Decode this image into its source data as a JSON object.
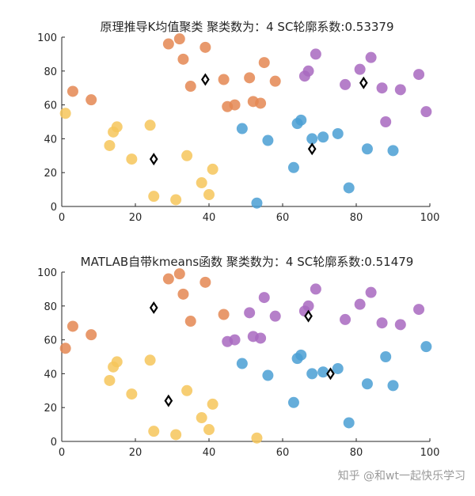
{
  "colors": {
    "cluster_blue": "#4a9fd3",
    "cluster_orange": "#e48752",
    "cluster_yellow": "#f6c65b",
    "cluster_purple": "#a869c0",
    "centroid_stroke": "#000000",
    "axis": "#262626"
  },
  "watermark": "知乎 @和wt一起快乐学习",
  "chart_data": [
    {
      "type": "scatter",
      "title": "原理推导K均值聚类 聚类数为：4 SC轮廓系数:0.53379",
      "xlim": [
        0,
        100
      ],
      "ylim": [
        0,
        100
      ],
      "xticks": [
        "0",
        "20",
        "40",
        "60",
        "80",
        "100"
      ],
      "yticks": [
        "0",
        "20",
        "40",
        "60",
        "80",
        "100"
      ],
      "grid": false,
      "clusters": [
        {
          "color": "#4a9fd3",
          "points": [
            [
              49,
              46
            ],
            [
              53,
              2
            ],
            [
              56,
              39
            ],
            [
              63,
              23
            ],
            [
              64,
              49
            ],
            [
              65,
              51
            ],
            [
              68,
              40
            ],
            [
              71,
              41
            ],
            [
              75,
              43
            ],
            [
              78,
              11
            ],
            [
              83,
              34
            ],
            [
              90,
              33
            ]
          ]
        },
        {
          "color": "#e48752",
          "points": [
            [
              3,
              68
            ],
            [
              8,
              63
            ],
            [
              29,
              96
            ],
            [
              32,
              99
            ],
            [
              33,
              87
            ],
            [
              35,
              71
            ],
            [
              39,
              94
            ],
            [
              44,
              75
            ],
            [
              45,
              59
            ],
            [
              47,
              60
            ],
            [
              51,
              76
            ],
            [
              52,
              62
            ],
            [
              54,
              61
            ],
            [
              55,
              85
            ],
            [
              58,
              74
            ]
          ]
        },
        {
          "color": "#f6c65b",
          "points": [
            [
              1,
              55
            ],
            [
              13,
              36
            ],
            [
              14,
              44
            ],
            [
              15,
              47
            ],
            [
              19,
              28
            ],
            [
              24,
              48
            ],
            [
              25,
              6
            ],
            [
              31,
              4
            ],
            [
              34,
              30
            ],
            [
              38,
              14
            ],
            [
              40,
              7
            ],
            [
              41,
              22
            ]
          ]
        },
        {
          "color": "#a869c0",
          "points": [
            [
              66,
              77
            ],
            [
              67,
              80
            ],
            [
              69,
              90
            ],
            [
              77,
              72
            ],
            [
              81,
              81
            ],
            [
              84,
              88
            ],
            [
              87,
              70
            ],
            [
              88,
              50
            ],
            [
              92,
              69
            ],
            [
              97,
              78
            ],
            [
              99,
              56
            ]
          ]
        }
      ],
      "centroids": [
        [
          25,
          28
        ],
        [
          39,
          75
        ],
        [
          68,
          34
        ],
        [
          82,
          73
        ]
      ]
    },
    {
      "type": "scatter",
      "title": "MATLAB自带kmeans函数 聚类数为：4 SC轮廓系数:0.51479",
      "xlim": [
        0,
        100
      ],
      "ylim": [
        0,
        100
      ],
      "xticks": [
        "0",
        "20",
        "40",
        "60",
        "80",
        "100"
      ],
      "yticks": [
        "0",
        "20",
        "40",
        "60",
        "80",
        "100"
      ],
      "grid": false,
      "clusters": [
        {
          "color": "#4a9fd3",
          "points": [
            [
              49,
              46
            ],
            [
              56,
              39
            ],
            [
              63,
              23
            ],
            [
              64,
              49
            ],
            [
              65,
              51
            ],
            [
              68,
              40
            ],
            [
              71,
              41
            ],
            [
              75,
              43
            ],
            [
              78,
              11
            ],
            [
              83,
              34
            ],
            [
              88,
              50
            ],
            [
              90,
              33
            ],
            [
              99,
              56
            ]
          ]
        },
        {
          "color": "#e48752",
          "points": [
            [
              1,
              55
            ],
            [
              3,
              68
            ],
            [
              8,
              63
            ],
            [
              29,
              96
            ],
            [
              32,
              99
            ],
            [
              33,
              87
            ],
            [
              35,
              71
            ],
            [
              39,
              94
            ],
            [
              44,
              75
            ]
          ]
        },
        {
          "color": "#f6c65b",
          "points": [
            [
              13,
              36
            ],
            [
              14,
              44
            ],
            [
              15,
              47
            ],
            [
              19,
              28
            ],
            [
              24,
              48
            ],
            [
              25,
              6
            ],
            [
              31,
              4
            ],
            [
              34,
              30
            ],
            [
              38,
              14
            ],
            [
              40,
              7
            ],
            [
              41,
              22
            ],
            [
              53,
              2
            ]
          ]
        },
        {
          "color": "#a869c0",
          "points": [
            [
              45,
              59
            ],
            [
              47,
              60
            ],
            [
              51,
              76
            ],
            [
              52,
              62
            ],
            [
              54,
              61
            ],
            [
              55,
              85
            ],
            [
              58,
              74
            ],
            [
              66,
              77
            ],
            [
              67,
              80
            ],
            [
              69,
              90
            ],
            [
              77,
              72
            ],
            [
              81,
              81
            ],
            [
              84,
              88
            ],
            [
              87,
              70
            ],
            [
              92,
              69
            ],
            [
              97,
              78
            ]
          ]
        }
      ],
      "centroids": [
        [
          25,
          79
        ],
        [
          29,
          24
        ],
        [
          67,
          74
        ],
        [
          73,
          40
        ]
      ]
    }
  ]
}
